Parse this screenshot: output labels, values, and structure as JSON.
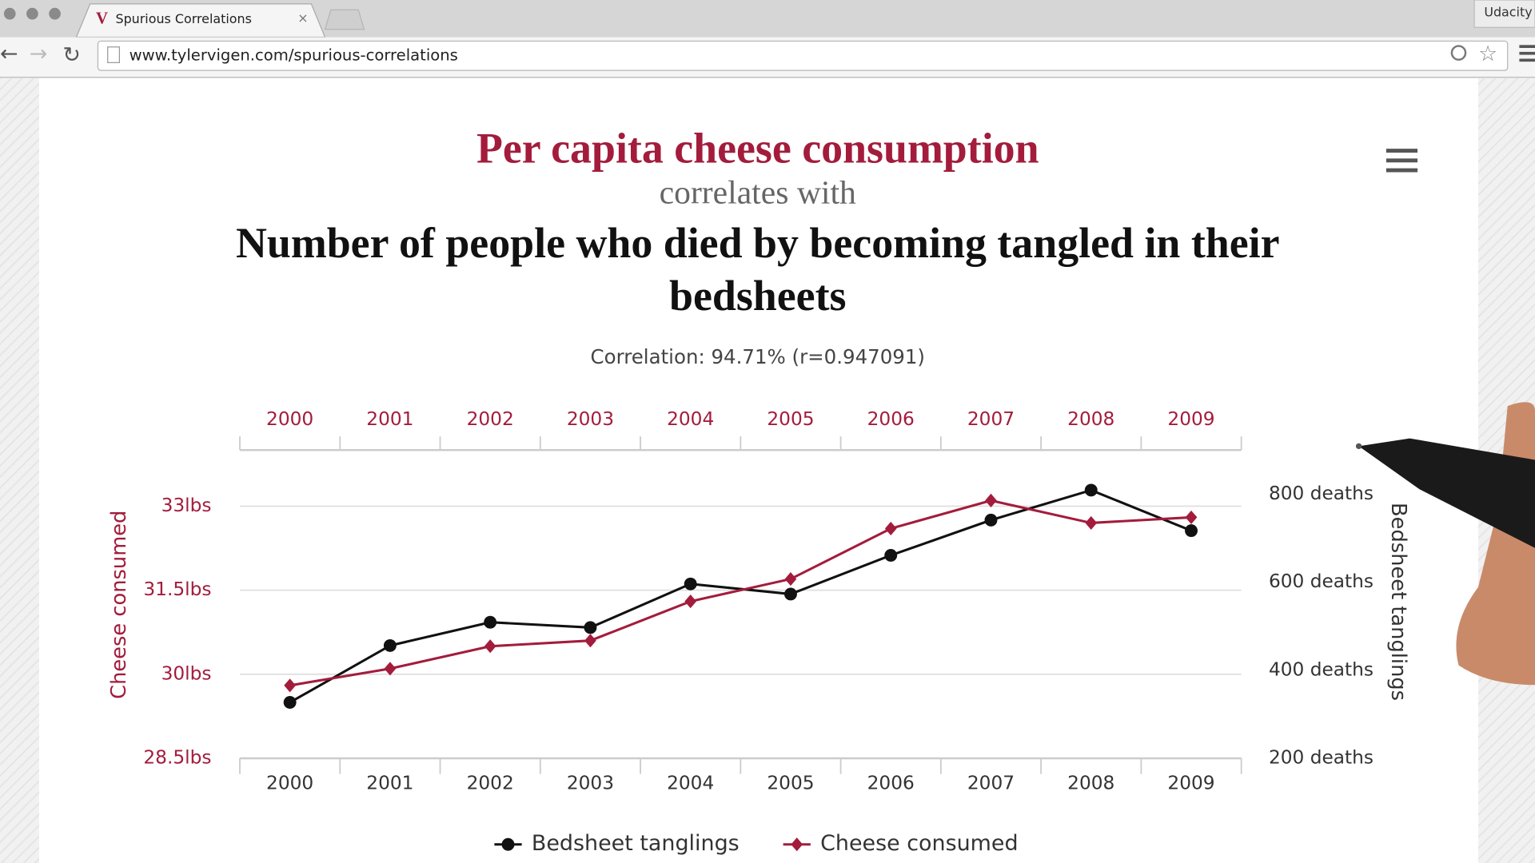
{
  "browser": {
    "tab_title": "Spurious Correlations",
    "url": "www.tylervigen.com/spurious-correlations",
    "profile": "Udacity"
  },
  "chart_data": {
    "type": "line",
    "title": "Per capita cheese consumption",
    "subtitle": "correlates with",
    "title2": "Number of people who died by becoming tangled in their bedsheets",
    "correlation": "Correlation: 94.71% (r=0.947091)",
    "categories": [
      "2000",
      "2001",
      "2002",
      "2003",
      "2004",
      "2005",
      "2006",
      "2007",
      "2008",
      "2009"
    ],
    "ylabel": "Cheese consumed",
    "y2label": "Bedsheet tanglings",
    "ylim": [
      28.5,
      34
    ],
    "yticks": [
      {
        "value": 28.5,
        "label": "28.5lbs"
      },
      {
        "value": 30,
        "label": "30lbs"
      },
      {
        "value": 31.5,
        "label": "31.5lbs"
      },
      {
        "value": 33,
        "label": "33lbs"
      }
    ],
    "y2lim": [
      200,
      900
    ],
    "y2ticks": [
      {
        "value": 200,
        "label": "200 deaths"
      },
      {
        "value": 400,
        "label": "400 deaths"
      },
      {
        "value": 600,
        "label": "600 deaths"
      },
      {
        "value": 800,
        "label": "800 deaths"
      }
    ],
    "grid": true,
    "legend": "bottom",
    "series": [
      {
        "name": "Bedsheet tanglings",
        "color": "#111111",
        "axis": "y2",
        "marker": "circle",
        "values": [
          327,
          456,
          509,
          497,
          596,
          573,
          661,
          741,
          809,
          717
        ]
      },
      {
        "name": "Cheese consumed",
        "color": "#a31c3c",
        "marker": "diamond",
        "values": [
          29.8,
          30.1,
          30.5,
          30.6,
          31.3,
          31.7,
          32.6,
          33.1,
          32.7,
          32.8
        ]
      }
    ]
  }
}
